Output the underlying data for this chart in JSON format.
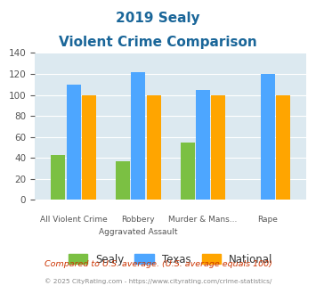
{
  "title_line1": "2019 Sealy",
  "title_line2": "Violent Crime Comparison",
  "cat_labels_top": [
    "",
    "Robbery",
    "",
    ""
  ],
  "cat_labels_bot": [
    "All Violent Crime",
    "Aggravated Assault",
    "Murder & Mans...",
    "Rape"
  ],
  "sealy": [
    43,
    37,
    55,
    0
  ],
  "texas": [
    110,
    122,
    105,
    120
  ],
  "national": [
    100,
    100,
    100,
    100
  ],
  "sealy_color": "#7bc043",
  "texas_color": "#4da6ff",
  "national_color": "#ffa500",
  "ylim": [
    0,
    140
  ],
  "yticks": [
    0,
    20,
    40,
    60,
    80,
    100,
    120,
    140
  ],
  "legend_labels": [
    "Sealy",
    "Texas",
    "National"
  ],
  "footnote1": "Compared to U.S. average. (U.S. average equals 100)",
  "footnote2": "© 2025 CityRating.com - https://www.cityrating.com/crime-statistics/",
  "bg_color": "#dce9f0",
  "title_color": "#1a6699",
  "bar_width": 0.22,
  "bar_gap": 0.02
}
